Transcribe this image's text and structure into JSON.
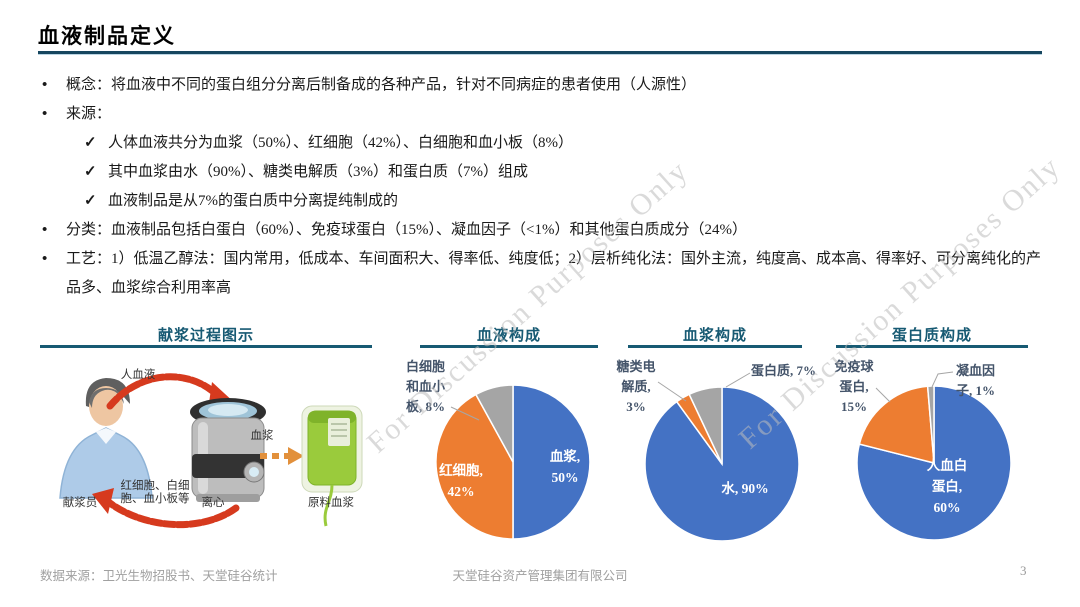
{
  "page": {
    "title": "血液制品定义",
    "accent_color": "#175A73"
  },
  "watermark": {
    "text": "For Discussion Purposes Only"
  },
  "content": {
    "items": [
      {
        "marker": "•",
        "text": "概念：将血液中不同的蛋白组分分离后制备成的各种产品，针对不同病症的患者使用（人源性）"
      },
      {
        "marker": "•",
        "text": "来源："
      },
      {
        "marker": "✓",
        "text": "人体血液共分为血浆（50%）、红细胞（42%）、白细胞和血小板（8%）"
      },
      {
        "marker": "✓",
        "text": "其中血浆由水（90%）、糖类电解质（3%）和蛋白质（7%）组成"
      },
      {
        "marker": "✓",
        "text": "血液制品是从7%的蛋白质中分离提纯制成的"
      },
      {
        "marker": "•",
        "text": "分类：血液制品包括白蛋白（60%）、免疫球蛋白（15%）、凝血因子（<1%）和其他蛋白质成分（24%）"
      },
      {
        "marker": "•",
        "text": "工艺：1）低温乙醇法：国内常用，低成本、车间面积大、得率低、纯度低；2）层析纯化法：国外主流，纯度高、成本高、得率好、可分离纯化的产品多、血浆综合利用率高"
      }
    ]
  },
  "process": {
    "title": "献浆过程图示",
    "donor_label": "献浆员",
    "centrifuge_label": "离心",
    "bag_label": "原料血浆",
    "arrow1_label": "人血液",
    "arrow2_label": "血浆",
    "return_label": "红细胞、白细\n胞、血小板等"
  },
  "pies": {
    "blood": {
      "title": "血液构成",
      "label_out": "白细胞\n和血小\n板, 8%",
      "label_blue": "血浆,\n50%",
      "label_orange": "红细胞,\n42%"
    },
    "plasma": {
      "title": "血浆构成",
      "label_left": "糖类电\n解质,\n3%",
      "label_right": "蛋白质, 7%",
      "label_in": "水, 90%"
    },
    "protein": {
      "title": "蛋白质构成",
      "label_left": "免疫球\n蛋白,\n15%",
      "label_right": "凝血因\n子, 1%",
      "label_in": "人血白\n蛋白,\n60%"
    }
  },
  "chart_data": [
    {
      "type": "diagram",
      "title": "献浆过程图示",
      "steps": [
        "献浆员",
        "人血液",
        "离心",
        "血浆",
        "原料血浆"
      ],
      "return_flow": "红细胞、白细胞、血小板等"
    },
    {
      "type": "pie",
      "title": "血液构成",
      "slices": [
        {
          "label": "血浆",
          "value": 50
        },
        {
          "label": "红细胞",
          "value": 42
        },
        {
          "label": "白细胞和血小板",
          "value": 8
        }
      ],
      "colors": [
        "#4472C4",
        "#ED7D31",
        "#A5A5A5"
      ]
    },
    {
      "type": "pie",
      "title": "血浆构成",
      "slices": [
        {
          "label": "水",
          "value": 90
        },
        {
          "label": "糖类电解质",
          "value": 3
        },
        {
          "label": "蛋白质",
          "value": 7
        }
      ],
      "colors": [
        "#4472C4",
        "#ED7D31",
        "#A5A5A5"
      ]
    },
    {
      "type": "pie",
      "title": "蛋白质构成",
      "slices": [
        {
          "label": "人血白蛋白",
          "value": 60
        },
        {
          "label": "免疫球蛋白",
          "value": 15
        },
        {
          "label": "凝血因子",
          "value": 1
        }
      ],
      "colors": [
        "#4472C4",
        "#ED7D31",
        "#A5A5A5"
      ]
    }
  ],
  "footer": {
    "source": "数据来源：卫光生物招股书、天堂硅谷统计",
    "company": "天堂硅谷资产管理集团有限公司",
    "page": "3"
  }
}
